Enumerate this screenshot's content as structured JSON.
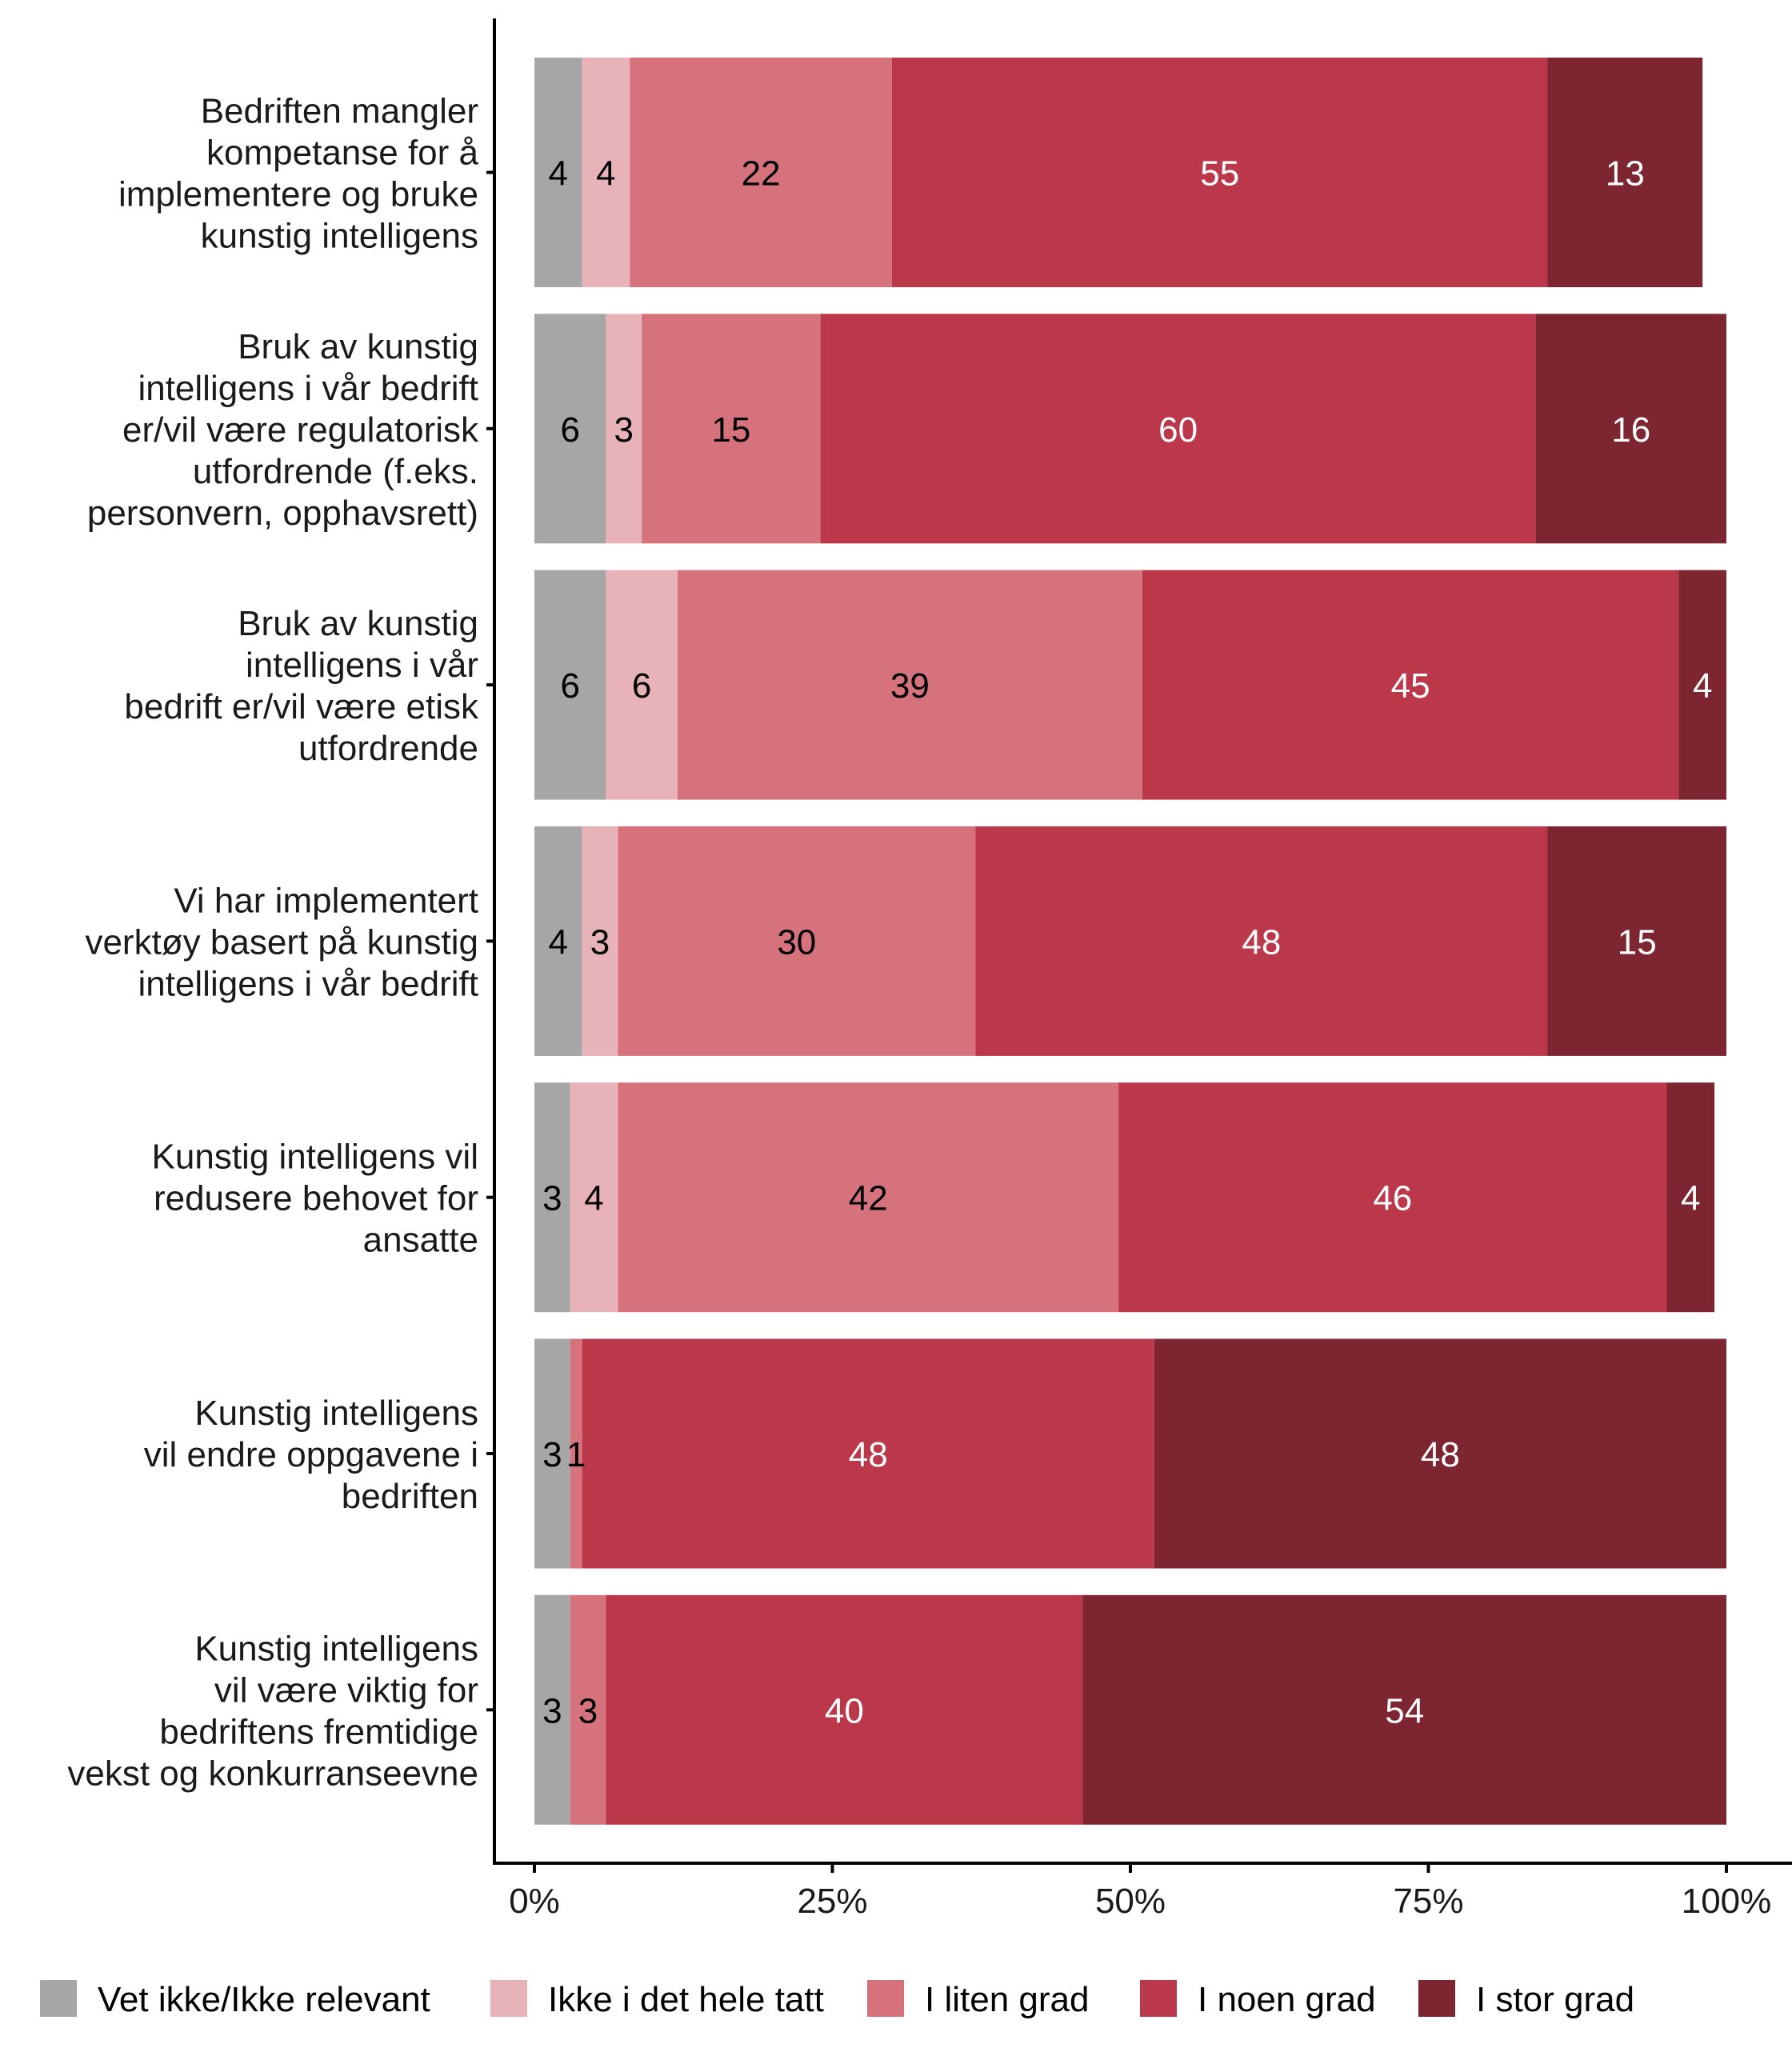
{
  "chart_data": {
    "type": "bar",
    "orientation": "horizontal",
    "stacked": true,
    "title": "",
    "xlabel": "",
    "ylabel": "",
    "xlim": [
      0,
      100
    ],
    "x_ticks": [
      "0%",
      "25%",
      "50%",
      "75%",
      "100%"
    ],
    "x_tick_values": [
      0,
      25,
      50,
      75,
      100
    ],
    "grid": false,
    "legend_position": "bottom",
    "categories": [
      [
        "Bedriften mangler",
        "kompetanse for å",
        "implementere og bruke",
        "kunstig intelligens"
      ],
      [
        "Bruk av kunstig",
        "intelligens i vår bedrift",
        "er/vil være regulatorisk",
        "utfordrende (f.eks.",
        "personvern, opphavsrett)"
      ],
      [
        "Bruk av kunstig",
        "intelligens i vår",
        "bedrift er/vil være etisk",
        "utfordrende"
      ],
      [
        "Vi har implementert",
        "verktøy basert på kunstig",
        "intelligens i vår bedrift"
      ],
      [
        "Kunstig intelligens vil",
        "redusere behovet for",
        "ansatte"
      ],
      [
        "Kunstig intelligens",
        "vil endre oppgavene i",
        "bedriften"
      ],
      [
        "Kunstig intelligens",
        "vil være viktig for",
        "bedriftens fremtidige",
        "vekst og konkurranseevne"
      ]
    ],
    "series": [
      {
        "name": "Vet ikke/Ikke relevant",
        "color": "#a6a6a6",
        "label_color": "#000000",
        "values": [
          4,
          6,
          6,
          4,
          3,
          3,
          3
        ],
        "labels": [
          "4",
          "6",
          "6",
          "4",
          "3",
          "3",
          "3"
        ]
      },
      {
        "name": "Ikke i det hele tatt",
        "color": "#e8b3b8",
        "label_color": "#000000",
        "values": [
          4,
          3,
          6,
          3,
          4,
          0,
          0
        ],
        "labels": [
          "4",
          "3",
          "6",
          "3",
          "4",
          "",
          ""
        ]
      },
      {
        "name": "I liten grad",
        "color": "#d6727c",
        "label_color": "#000000",
        "values": [
          22,
          15,
          39,
          30,
          42,
          1,
          3
        ],
        "labels": [
          "22",
          "15",
          "39",
          "30",
          "42",
          "1",
          "3"
        ]
      },
      {
        "name": "I noen grad",
        "color": "#bb374a",
        "label_color": "#ffffff",
        "values": [
          55,
          60,
          45,
          48,
          46,
          48,
          40
        ],
        "labels": [
          "55",
          "60",
          "45",
          "48",
          "46",
          "48",
          "40"
        ]
      },
      {
        "name": "I stor grad",
        "color": "#7d2530",
        "label_color": "#ffffff",
        "values": [
          13,
          16,
          4,
          15,
          4,
          48,
          54
        ],
        "labels": [
          "13",
          "16",
          "4",
          "15",
          "4",
          "48",
          "54"
        ]
      }
    ]
  }
}
